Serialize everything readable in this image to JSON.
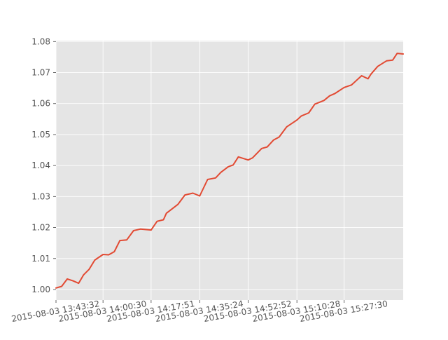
{
  "chart_data": {
    "type": "line",
    "title": "",
    "xlabel": "",
    "ylabel": "",
    "x_tick_labels": [
      "2015-08-03 13:43:32",
      "2015-08-03 14:00:30",
      "2015-08-03 14:17:51",
      "2015-08-03 14:35:24",
      "2015-08-03 14:52:52",
      "2015-08-03 15:10:28",
      "2015-08-03 15:27:30"
    ],
    "y_ticks": [
      1.0,
      1.01,
      1.02,
      1.03,
      1.04,
      1.05,
      1.06,
      1.07,
      1.08
    ],
    "y_tick_labels": [
      "1.00",
      "1.01",
      "1.02",
      "1.03",
      "1.04",
      "1.05",
      "1.06",
      "1.07",
      "1.08"
    ],
    "xlim": [
      "2015-08-03 13:43:32",
      "2015-08-03 15:48:49"
    ],
    "ylim": [
      0.9966,
      1.0803
    ],
    "grid": true,
    "legend": false,
    "style": {
      "background": "#e5e5e5",
      "grid_color": "#ffffff",
      "line_color": "#e24a33",
      "tick_label_color": "#555555"
    },
    "series": [
      {
        "x": [
          "2015-08-03 13:43:32",
          "2015-08-03 13:45:34",
          "2015-08-03 13:47:36",
          "2015-08-03 13:49:39",
          "2015-08-03 13:51:41",
          "2015-08-03 13:53:28",
          "2015-08-03 13:55:29",
          "2015-08-03 13:57:31",
          "2015-08-03 14:00:30",
          "2015-08-03 14:02:32",
          "2015-08-03 14:04:34",
          "2015-08-03 14:06:36",
          "2015-08-03 14:09:04",
          "2015-08-03 14:11:31",
          "2015-08-03 14:13:58",
          "2015-08-03 14:17:51",
          "2015-08-03 14:20:00",
          "2015-08-03 14:22:18",
          "2015-08-03 14:23:22",
          "2015-08-03 14:27:33",
          "2015-08-03 14:30:04",
          "2015-08-03 14:32:57",
          "2015-08-03 14:35:24",
          "2015-08-03 14:38:15",
          "2015-08-03 14:41:08",
          "2015-08-03 14:43:00",
          "2015-08-03 14:45:38",
          "2015-08-03 14:47:28",
          "2015-08-03 14:49:20",
          "2015-08-03 14:52:52",
          "2015-08-03 14:54:29",
          "2015-08-03 14:57:44",
          "2015-08-03 14:59:46",
          "2015-08-03 15:01:59",
          "2015-08-03 15:04:02",
          "2015-08-03 15:06:47",
          "2015-08-03 15:10:28",
          "2015-08-03 15:12:04",
          "2015-08-03 15:14:44",
          "2015-08-03 15:16:55",
          "2015-08-03 15:20:13",
          "2015-08-03 15:22:16",
          "2015-08-03 15:24:06",
          "2015-08-03 15:27:30",
          "2015-08-03 15:30:09",
          "2015-08-03 15:33:49",
          "2015-08-03 15:36:06",
          "2015-08-03 15:37:12",
          "2015-08-03 15:39:38",
          "2015-08-03 15:42:51",
          "2015-08-03 15:45:00",
          "2015-08-03 15:46:38",
          "2015-08-03 15:48:49"
        ],
        "values": [
          1.0005,
          1.001,
          1.0034,
          1.0028,
          1.002,
          1.0047,
          1.0065,
          1.0095,
          1.0113,
          1.0112,
          1.0122,
          1.0158,
          1.016,
          1.019,
          1.0195,
          1.0192,
          1.022,
          1.0225,
          1.0246,
          1.0275,
          1.0305,
          1.0311,
          1.0302,
          1.0355,
          1.036,
          1.0378,
          1.0396,
          1.0402,
          1.0428,
          1.0418,
          1.0425,
          1.0455,
          1.046,
          1.0482,
          1.0492,
          1.0525,
          1.0547,
          1.056,
          1.057,
          1.0598,
          1.061,
          1.0625,
          1.0632,
          1.0652,
          1.066,
          1.069,
          1.068,
          1.0695,
          1.072,
          1.0738,
          1.074,
          1.0762,
          1.076
        ]
      }
    ]
  }
}
